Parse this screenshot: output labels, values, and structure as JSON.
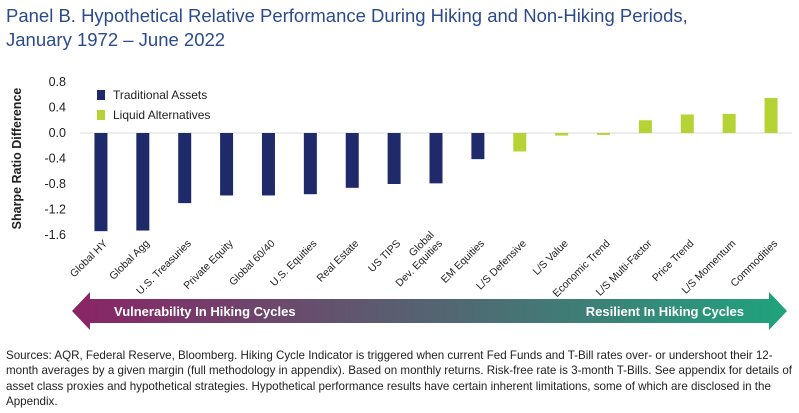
{
  "title": {
    "line1": "Panel B. Hypothetical Relative Performance During Hiking and Non-Hiking Periods,",
    "line2": "January 1972 – June 2022"
  },
  "chart_data": {
    "type": "bar",
    "ylabel": "Sharpe Ratio Difference",
    "ylim": [
      -1.6,
      0.8
    ],
    "yticks": [
      "0.8",
      "0.4",
      "0.0",
      "-0.4",
      "-0.8",
      "-1.2",
      "-1.6"
    ],
    "ytick_values": [
      0.8,
      0.4,
      0.0,
      -0.4,
      -0.8,
      -1.2,
      -1.6
    ],
    "grid": false,
    "legend_position": "top-left",
    "categories": [
      "Global HY",
      "Global Agg",
      "U.S. Treasuries",
      "Private Equity",
      "Global 60/40",
      "U.S. Equities",
      "Real Estate",
      "US TIPS",
      "Global Dev. Equities",
      "EM Equities",
      "L/S Defensive",
      "L/S Value",
      "Economic Trend",
      "L/S Multi-Factor",
      "Price Trend",
      "L/S Momentum",
      "Commodities"
    ],
    "category_lines": [
      [
        "Global HY"
      ],
      [
        "Global Agg"
      ],
      [
        "U.S. Treasuries"
      ],
      [
        "Private Equity"
      ],
      [
        "Global 60/40"
      ],
      [
        "U.S. Equities"
      ],
      [
        "Real Estate"
      ],
      [
        "US TIPS"
      ],
      [
        "Global",
        "Dev. Equities"
      ],
      [
        "EM Equities"
      ],
      [
        "L/S Defensive"
      ],
      [
        "L/S Value"
      ],
      [
        "Economic Trend"
      ],
      [
        "L/S Multi-Factor"
      ],
      [
        "Price Trend"
      ],
      [
        "L/S Momentum"
      ],
      [
        "Commodities"
      ]
    ],
    "values": [
      -1.54,
      -1.53,
      -1.1,
      -0.98,
      -0.98,
      -0.96,
      -0.86,
      -0.8,
      -0.79,
      -0.41,
      -0.29,
      -0.04,
      -0.03,
      0.2,
      0.29,
      0.3,
      0.55
    ],
    "groups": [
      0,
      0,
      0,
      0,
      0,
      0,
      0,
      0,
      0,
      0,
      1,
      1,
      1,
      1,
      1,
      1,
      1
    ],
    "series": [
      {
        "name": "Traditional Assets",
        "color": "#1f2a6b"
      },
      {
        "name": "Liquid Alternatives",
        "color": "#b6d335"
      }
    ]
  },
  "arrow": {
    "left_label": "Vulnerability In Hiking Cycles",
    "right_label": "Resilient In Hiking Cycles",
    "left_color": "#8a2466",
    "right_color": "#1fa37d"
  },
  "sources": "Sources: AQR, Federal Reserve, Bloomberg. Hiking Cycle Indicator is triggered when current Fed Funds and T-Bill rates over- or undershoot their 12-month averages by a given margin (full methodology in appendix). Based on monthly returns. Risk-free rate is 3-month T-Bills. See appendix for details of asset class proxies and hypothetical strategies. Hypothetical performance results have certain inherent limitations, some of which are disclosed in the Appendix."
}
